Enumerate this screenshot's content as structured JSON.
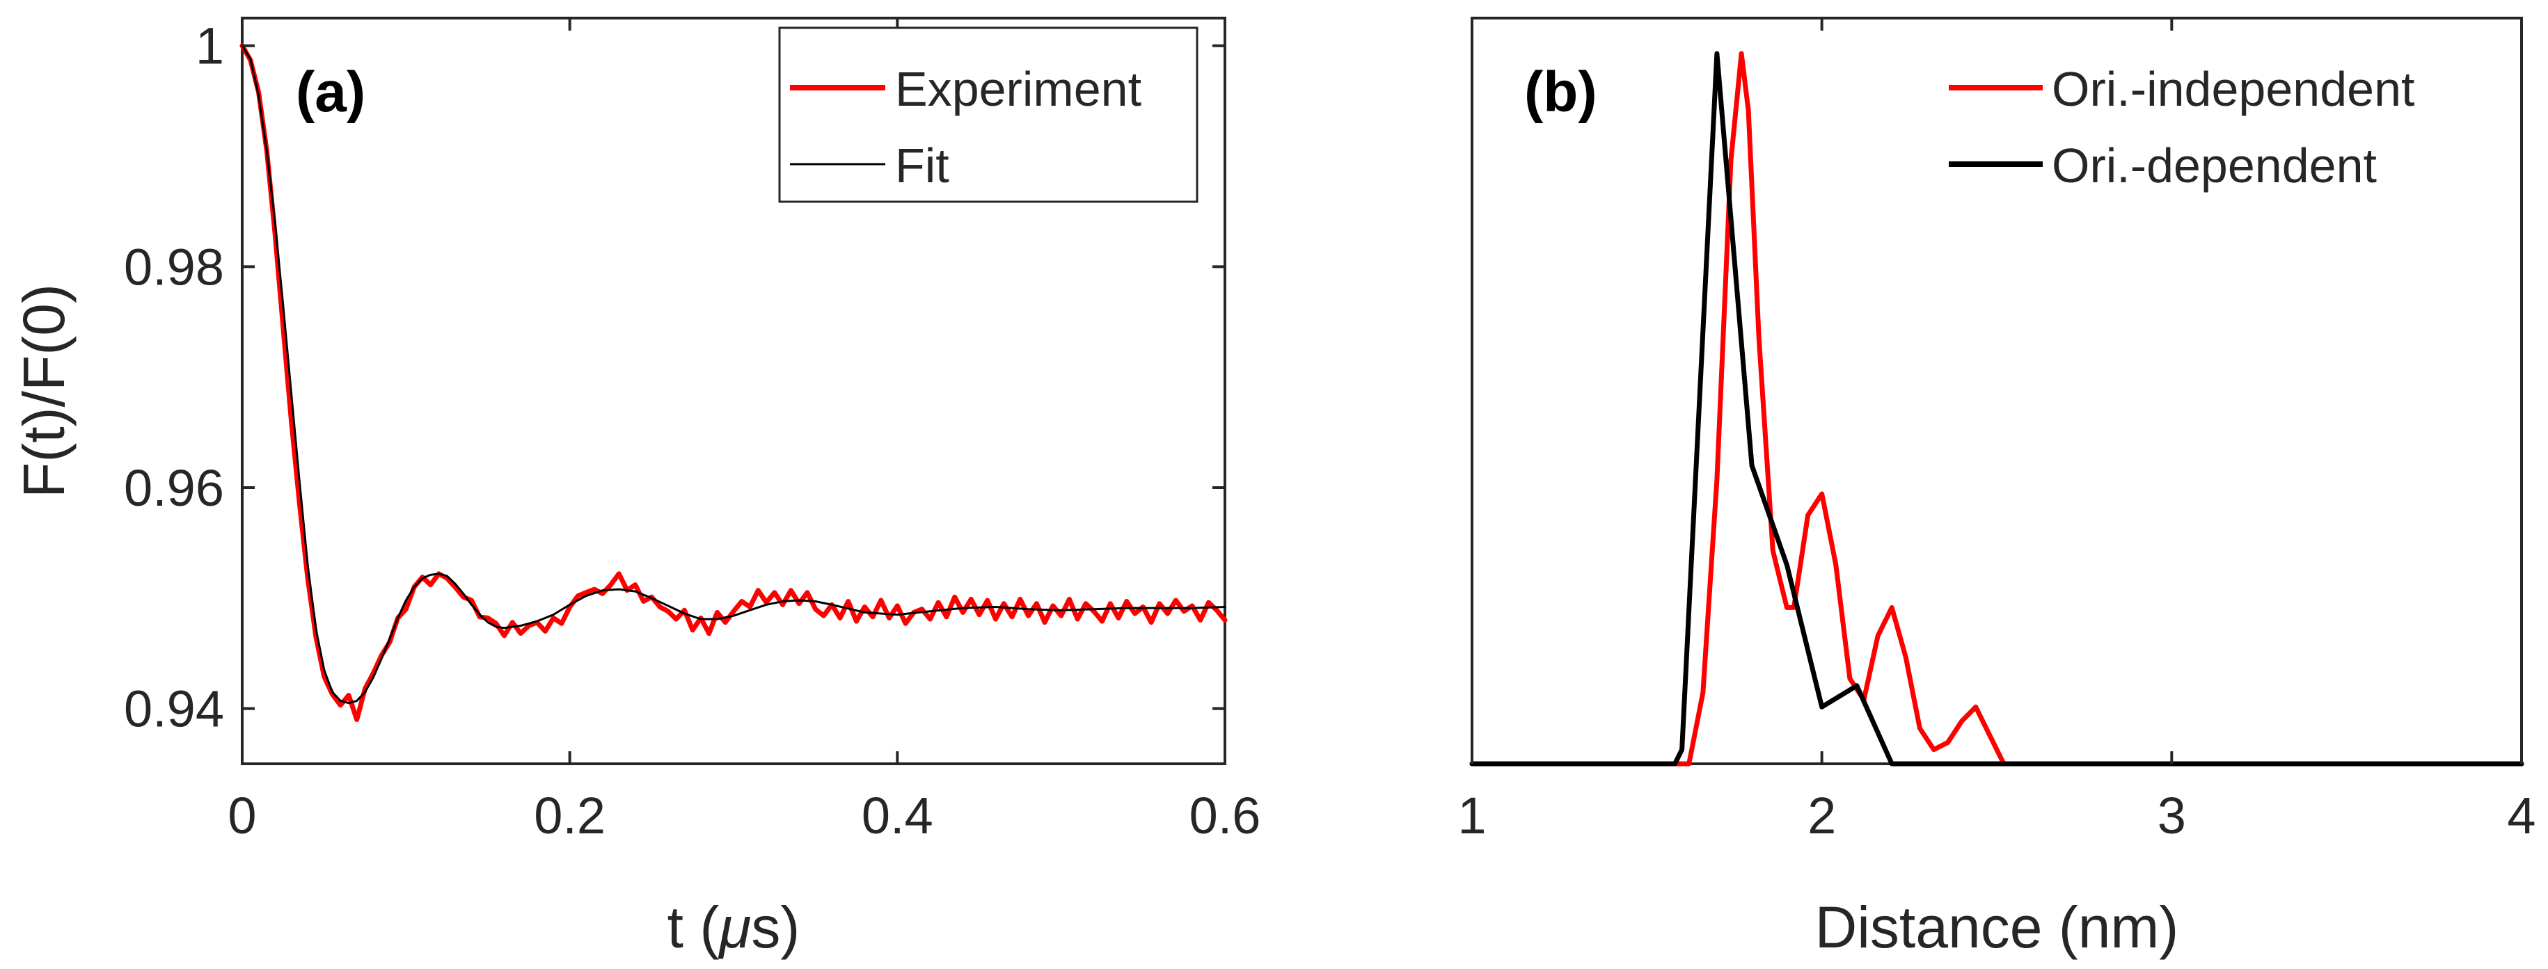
{
  "chart_data": [
    {
      "type": "line",
      "panel_label": "(a)",
      "xlabel_prefix": "t (",
      "xlabel_mu": "μ",
      "xlabel_suffix": "s)",
      "ylabel": "F(t)/F(0)",
      "xlim": [
        0,
        0.6
      ],
      "ylim": [
        0.935,
        1.0025
      ],
      "xticks": [
        0,
        0.2,
        0.4,
        0.6
      ],
      "xtick_labels": [
        "0",
        "0.2",
        "0.4",
        "0.6"
      ],
      "yticks": [
        0.94,
        0.96,
        0.98,
        1
      ],
      "ytick_labels": [
        "0.94",
        "0.96",
        "0.98",
        "1"
      ],
      "legend_position": "top-right",
      "series": [
        {
          "name": "Experiment",
          "color": "#ff0000",
          "x": [
            0,
            0.005,
            0.01,
            0.015,
            0.02,
            0.025,
            0.03,
            0.035,
            0.04,
            0.045,
            0.05,
            0.055,
            0.06,
            0.065,
            0.07,
            0.075,
            0.08,
            0.085,
            0.09,
            0.095,
            0.1,
            0.105,
            0.11,
            0.115,
            0.12,
            0.125,
            0.13,
            0.135,
            0.14,
            0.145,
            0.15,
            0.155,
            0.16,
            0.165,
            0.17,
            0.175,
            0.18,
            0.185,
            0.19,
            0.195,
            0.2,
            0.205,
            0.21,
            0.215,
            0.22,
            0.225,
            0.23,
            0.235,
            0.24,
            0.245,
            0.25,
            0.255,
            0.26,
            0.265,
            0.27,
            0.275,
            0.28,
            0.285,
            0.29,
            0.295,
            0.3,
            0.305,
            0.31,
            0.315,
            0.32,
            0.325,
            0.33,
            0.335,
            0.34,
            0.345,
            0.35,
            0.355,
            0.36,
            0.365,
            0.37,
            0.375,
            0.38,
            0.385,
            0.39,
            0.395,
            0.4,
            0.405,
            0.41,
            0.415,
            0.42,
            0.425,
            0.43,
            0.435,
            0.44,
            0.445,
            0.45,
            0.455,
            0.46,
            0.465,
            0.47,
            0.475,
            0.48,
            0.485,
            0.49,
            0.495,
            0.5,
            0.505,
            0.51,
            0.515,
            0.52,
            0.525,
            0.53,
            0.535,
            0.54,
            0.545,
            0.55,
            0.555,
            0.56,
            0.565,
            0.57,
            0.575,
            0.58,
            0.585,
            0.59,
            0.595,
            0.6
          ],
          "y": [
            1.0,
            0.9987,
            0.9958,
            0.9905,
            0.983,
            0.9745,
            0.966,
            0.9585,
            0.9518,
            0.9465,
            0.9429,
            0.9413,
            0.9403,
            0.9412,
            0.939,
            0.9418,
            0.9432,
            0.9448,
            0.946,
            0.9482,
            0.949,
            0.951,
            0.9519,
            0.9512,
            0.9522,
            0.9518,
            0.951,
            0.9501,
            0.9498,
            0.9483,
            0.9482,
            0.9477,
            0.9466,
            0.9478,
            0.9468,
            0.9475,
            0.9478,
            0.947,
            0.9482,
            0.9477,
            0.9492,
            0.9502,
            0.9505,
            0.9508,
            0.9504,
            0.9512,
            0.9522,
            0.9507,
            0.9512,
            0.9497,
            0.9501,
            0.9492,
            0.9488,
            0.9481,
            0.9489,
            0.9471,
            0.9482,
            0.9468,
            0.9487,
            0.9478,
            0.9488,
            0.9497,
            0.9492,
            0.9507,
            0.9496,
            0.9505,
            0.9494,
            0.9507,
            0.9495,
            0.9505,
            0.949,
            0.9484,
            0.9494,
            0.9482,
            0.9497,
            0.9479,
            0.9492,
            0.9483,
            0.9498,
            0.9482,
            0.9493,
            0.9477,
            0.9487,
            0.949,
            0.9481,
            0.9496,
            0.9483,
            0.9501,
            0.9487,
            0.9499,
            0.9485,
            0.9498,
            0.9481,
            0.9495,
            0.9483,
            0.9499,
            0.9484,
            0.9495,
            0.9478,
            0.9493,
            0.9484,
            0.9499,
            0.9481,
            0.9495,
            0.9488,
            0.9479,
            0.9495,
            0.9482,
            0.9497,
            0.9486,
            0.9492,
            0.9478,
            0.9495,
            0.9486,
            0.9498,
            0.9488,
            0.9493,
            0.948,
            0.9496,
            0.9489,
            0.948
          ]
        },
        {
          "name": "Fit",
          "color": "#000000",
          "x": [
            0,
            0.005,
            0.01,
            0.015,
            0.02,
            0.025,
            0.03,
            0.035,
            0.04,
            0.045,
            0.05,
            0.055,
            0.06,
            0.065,
            0.07,
            0.075,
            0.08,
            0.085,
            0.09,
            0.095,
            0.1,
            0.105,
            0.11,
            0.115,
            0.12,
            0.125,
            0.13,
            0.135,
            0.14,
            0.145,
            0.15,
            0.155,
            0.16,
            0.165,
            0.17,
            0.175,
            0.18,
            0.19,
            0.2,
            0.21,
            0.22,
            0.23,
            0.24,
            0.25,
            0.26,
            0.27,
            0.28,
            0.29,
            0.3,
            0.31,
            0.32,
            0.33,
            0.34,
            0.35,
            0.36,
            0.38,
            0.4,
            0.42,
            0.44,
            0.46,
            0.48,
            0.5,
            0.52,
            0.54,
            0.56,
            0.58,
            0.6
          ],
          "y": [
            1.0,
            0.9988,
            0.9955,
            0.9905,
            0.984,
            0.9765,
            0.9685,
            0.9605,
            0.953,
            0.9472,
            0.9435,
            0.9415,
            0.9407,
            0.9405,
            0.9407,
            0.9415,
            0.9428,
            0.9445,
            0.9463,
            0.9482,
            0.9498,
            0.951,
            0.9518,
            0.9521,
            0.9522,
            0.952,
            0.9513,
            0.9504,
            0.9494,
            0.9485,
            0.9478,
            0.9474,
            0.9473,
            0.9474,
            0.9475,
            0.9477,
            0.9479,
            0.9485,
            0.9494,
            0.9502,
            0.9507,
            0.9508,
            0.9506,
            0.95,
            0.9493,
            0.9486,
            0.9481,
            0.9481,
            0.9484,
            0.9489,
            0.9494,
            0.9497,
            0.9498,
            0.9497,
            0.9494,
            0.9487,
            0.9485,
            0.9488,
            0.9491,
            0.9492,
            0.949,
            0.9489,
            0.949,
            0.9491,
            0.9491,
            0.9491,
            0.9492
          ]
        }
      ]
    },
    {
      "type": "line",
      "panel_label": "(b)",
      "xlabel": "Distance (nm)",
      "ylabel": "",
      "xlim": [
        1,
        4
      ],
      "ylim": [
        0,
        1.05
      ],
      "xticks": [
        1,
        2,
        3,
        4
      ],
      "xtick_labels": [
        "1",
        "2",
        "3",
        "4"
      ],
      "yticks": [],
      "legend_position": "top-right",
      "series": [
        {
          "name": "Ori.-independent",
          "color": "#ff0000",
          "x": [
            1.0,
            1.5,
            1.62,
            1.66,
            1.7,
            1.74,
            1.77,
            1.79,
            1.82,
            1.86,
            1.9,
            1.92,
            1.96,
            2.0,
            2.04,
            2.08,
            2.12,
            2.16,
            2.2,
            2.24,
            2.28,
            2.32,
            2.36,
            2.4,
            2.44,
            2.48,
            2.52,
            2.6,
            3.0,
            4.0
          ],
          "y": [
            0,
            0,
            0.0,
            0.1,
            0.4,
            0.85,
            1.0,
            0.92,
            0.6,
            0.3,
            0.22,
            0.22,
            0.35,
            0.38,
            0.28,
            0.12,
            0.09,
            0.18,
            0.22,
            0.15,
            0.05,
            0.02,
            0.03,
            0.06,
            0.08,
            0.04,
            0.0,
            0,
            0,
            0
          ]
        },
        {
          "name": "Ori.-dependent",
          "color": "#000000",
          "x": [
            1.0,
            1.58,
            1.6,
            1.7,
            1.8,
            1.9,
            2.0,
            2.1,
            2.2,
            3.0,
            4.0
          ],
          "y": [
            0,
            0,
            0.02,
            1.0,
            0.42,
            0.28,
            0.08,
            0.11,
            0,
            0,
            0
          ]
        }
      ]
    }
  ]
}
